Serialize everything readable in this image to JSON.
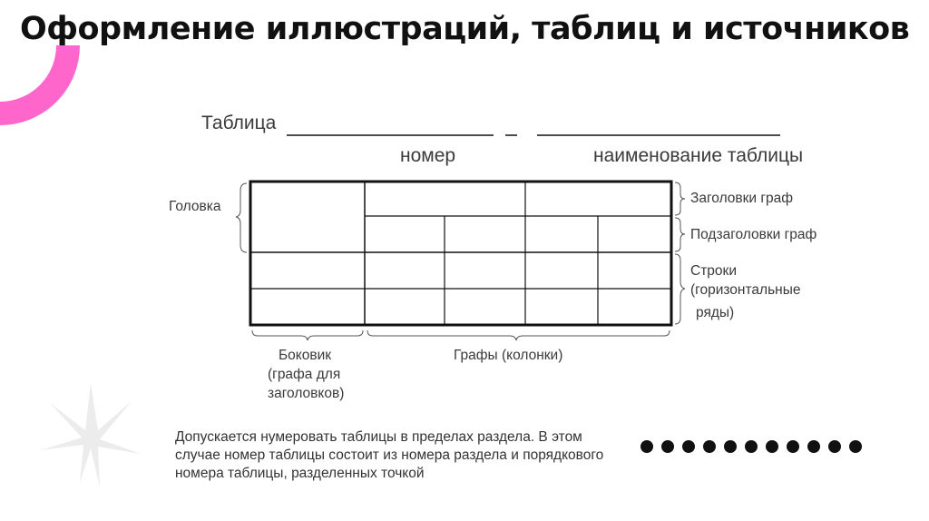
{
  "slide": {
    "title": "Оформление иллюстраций, таблиц и источников",
    "accent_color": "#ff66cc",
    "diagram": {
      "caption_prefix": "Таблица",
      "separator": "_",
      "label_number": "номер",
      "label_name": "наименование таблицы",
      "left_label": "Головка",
      "right_labels": [
        "Заголовки граф",
        "Подзаголовки граф",
        "Строки",
        "(горизонтальные",
        "ряды)"
      ],
      "bottom_left_lines": [
        "Боковик",
        "(графа для",
        "заголовков)"
      ],
      "bottom_right": "Графы (колонки)"
    },
    "note": "Допускается нумеровать таблицы в пределах раздела. В этом случае номер таблицы состоит из номера раздела и порядкового номера таблицы, разделенных точкой",
    "decor": {
      "dots_count": 11,
      "star_icon": "starburst-icon",
      "arc_icon": "pink-arc"
    }
  }
}
